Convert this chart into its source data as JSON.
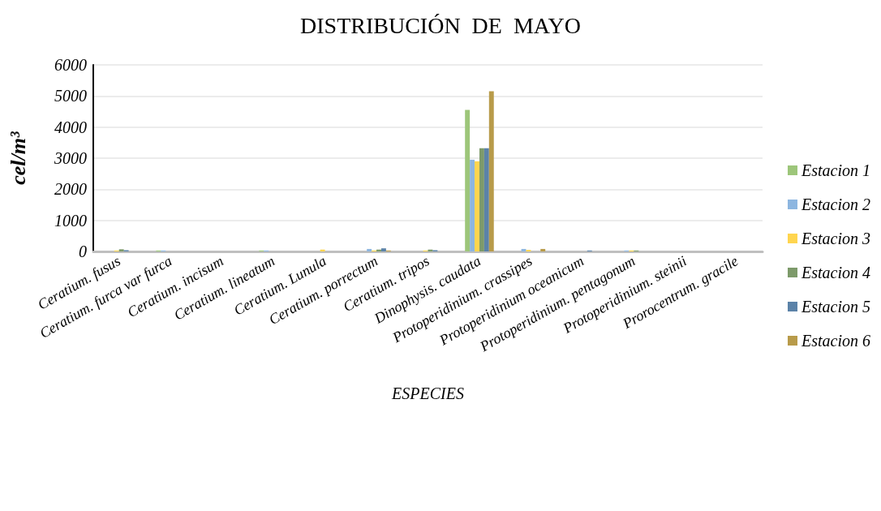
{
  "chart_data": {
    "type": "bar",
    "title": "DISTRIBUCIÓN  DE  MAYO",
    "xlabel": "ESPECIES",
    "ylabel": "cel/m³",
    "categories": [
      "Ceratium. fusus",
      "Ceratium. furca var furca",
      "Ceratium. incisum",
      "Ceratium. lineatum",
      "Ceratium. Lunula",
      "Ceratium. porrectum",
      "Ceratium. tripos",
      "Dinophysis. caudata",
      "Protoperidinium. crassipes",
      "Protoperidinium oceanicum",
      "Protoperidinium. pentagonum",
      "Protoperidinium. steinii",
      "Prorocentrum. gracile"
    ],
    "series": [
      {
        "name": "Estacion 1",
        "color": "#9dc67a",
        "values": [
          0,
          30,
          0,
          30,
          0,
          0,
          0,
          4550,
          0,
          0,
          0,
          0,
          0
        ]
      },
      {
        "name": "Estacion 2",
        "color": "#8db6e0",
        "values": [
          0,
          30,
          0,
          30,
          0,
          80,
          0,
          2950,
          80,
          0,
          30,
          0,
          0
        ]
      },
      {
        "name": "Estacion 3",
        "color": "#ffd54f",
        "values": [
          30,
          0,
          0,
          0,
          60,
          30,
          30,
          2900,
          50,
          0,
          30,
          0,
          0
        ]
      },
      {
        "name": "Estacion 4",
        "color": "#7d9a6a",
        "values": [
          70,
          0,
          0,
          0,
          0,
          60,
          60,
          3320,
          0,
          0,
          30,
          0,
          0
        ]
      },
      {
        "name": "Estacion 5",
        "color": "#5b82a8",
        "values": [
          40,
          0,
          0,
          0,
          0,
          100,
          40,
          3320,
          0,
          30,
          0,
          0,
          0
        ]
      },
      {
        "name": "Estacion 6",
        "color": "#b89b4a",
        "values": [
          0,
          0,
          0,
          0,
          0,
          30,
          0,
          5150,
          80,
          0,
          0,
          0,
          0
        ]
      }
    ],
    "ylim": [
      0,
      6000
    ],
    "yticks": [
      0,
      1000,
      2000,
      3000,
      4000,
      5000,
      6000
    ],
    "grid": "y",
    "legend": "right"
  }
}
